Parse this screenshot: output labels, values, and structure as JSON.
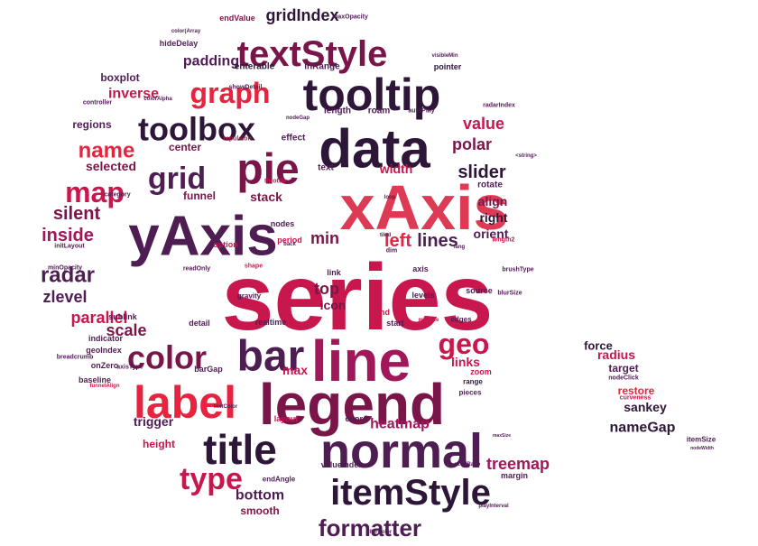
{
  "chart_data": {
    "type": "wordcloud",
    "title": "",
    "palette": [
      "#e6243f",
      "#c8174d",
      "#a0175a",
      "#7a1549",
      "#4e1d52",
      "#2d1638",
      "#dd3a55"
    ],
    "words": [
      {
        "text": "series",
        "size": 104,
        "weight": 100,
        "color": "#c8174d"
      },
      {
        "text": "xAxis",
        "size": 70,
        "weight": 75,
        "color": "#dd3a55"
      },
      {
        "text": "yAxis",
        "size": 62,
        "weight": 70,
        "color": "#4e1d52"
      },
      {
        "text": "legend",
        "size": 64,
        "weight": 70,
        "color": "#7a1549"
      },
      {
        "text": "line",
        "size": 64,
        "weight": 70,
        "color": "#a0175a"
      },
      {
        "text": "data",
        "size": 60,
        "weight": 65,
        "color": "#2d1638"
      },
      {
        "text": "tooltip",
        "size": 50,
        "weight": 60,
        "color": "#2d1638"
      },
      {
        "text": "normal",
        "size": 54,
        "weight": 60,
        "color": "#4e1d52"
      },
      {
        "text": "label",
        "size": 50,
        "weight": 55,
        "color": "#e6243f"
      },
      {
        "text": "bar",
        "size": 48,
        "weight": 55,
        "color": "#4e1d52"
      },
      {
        "text": "pie",
        "size": 48,
        "weight": 55,
        "color": "#7a1549"
      },
      {
        "text": "title",
        "size": 46,
        "weight": 52,
        "color": "#2d1638"
      },
      {
        "text": "textStyle",
        "size": 40,
        "weight": 50,
        "color": "#7a1549"
      },
      {
        "text": "itemStyle",
        "size": 40,
        "weight": 50,
        "color": "#2d1638"
      },
      {
        "text": "toolbox",
        "size": 36,
        "weight": 45,
        "color": "#2d1638"
      },
      {
        "text": "color",
        "size": 36,
        "weight": 45,
        "color": "#7a1549"
      },
      {
        "text": "grid",
        "size": 34,
        "weight": 44,
        "color": "#4e1d52"
      },
      {
        "text": "graph",
        "size": 32,
        "weight": 42,
        "color": "#e6243f"
      },
      {
        "text": "map",
        "size": 32,
        "weight": 42,
        "color": "#c8174d"
      },
      {
        "text": "type",
        "size": 34,
        "weight": 42,
        "color": "#c8174d"
      },
      {
        "text": "geo",
        "size": 32,
        "weight": 40,
        "color": "#c8174d"
      },
      {
        "text": "formatter",
        "size": 26,
        "weight": 35,
        "color": "#4e1d52"
      },
      {
        "text": "name",
        "size": 24,
        "weight": 32,
        "color": "#e6243f"
      },
      {
        "text": "radar",
        "size": 24,
        "weight": 32,
        "color": "#4e1d52"
      },
      {
        "text": "slider",
        "size": 20,
        "weight": 28,
        "color": "#2d1638"
      },
      {
        "text": "polar",
        "size": 18,
        "weight": 26,
        "color": "#7a1549"
      },
      {
        "text": "value",
        "size": 18,
        "weight": 26,
        "color": "#c8174d"
      },
      {
        "text": "silent",
        "size": 20,
        "weight": 26,
        "color": "#7a1549"
      },
      {
        "text": "inside",
        "size": 20,
        "weight": 26,
        "color": "#a0175a"
      },
      {
        "text": "left",
        "size": 20,
        "weight": 26,
        "color": "#e6243f"
      },
      {
        "text": "lines",
        "size": 20,
        "weight": 26,
        "color": "#4e1d52"
      },
      {
        "text": "min",
        "size": 18,
        "weight": 24,
        "color": "#7a1549"
      },
      {
        "text": "zlevel",
        "size": 18,
        "weight": 24,
        "color": "#4e1d52"
      },
      {
        "text": "parallel",
        "size": 18,
        "weight": 24,
        "color": "#c8174d"
      },
      {
        "text": "scale",
        "size": 18,
        "weight": 24,
        "color": "#7a1549"
      },
      {
        "text": "top",
        "size": 18,
        "weight": 24,
        "color": "#7a1549"
      },
      {
        "text": "treemap",
        "size": 18,
        "weight": 24,
        "color": "#a0175a"
      },
      {
        "text": "bottom",
        "size": 16,
        "weight": 22,
        "color": "#4e1d52"
      },
      {
        "text": "heatmap",
        "size": 16,
        "weight": 22,
        "color": "#a0175a"
      },
      {
        "text": "nameGap",
        "size": 16,
        "weight": 22,
        "color": "#2d1638"
      },
      {
        "text": "sankey",
        "size": 14,
        "weight": 20,
        "color": "#2d1638"
      },
      {
        "text": "gridIndex",
        "size": 18,
        "weight": 22,
        "color": "#2d1638"
      },
      {
        "text": "padding",
        "size": 16,
        "weight": 20,
        "color": "#4e1d52"
      },
      {
        "text": "inverse",
        "size": 16,
        "weight": 20,
        "color": "#c8174d"
      },
      {
        "text": "selected",
        "size": 14,
        "weight": 20,
        "color": "#7a1549"
      },
      {
        "text": "width",
        "size": 14,
        "weight": 20,
        "color": "#c8174d"
      },
      {
        "text": "stack",
        "size": 14,
        "weight": 20,
        "color": "#7a1549"
      },
      {
        "text": "orient",
        "size": 14,
        "weight": 20,
        "color": "#4e1d52"
      },
      {
        "text": "links",
        "size": 14,
        "weight": 20,
        "color": "#c8174d"
      },
      {
        "text": "trigger",
        "size": 14,
        "weight": 20,
        "color": "#4e1d52"
      },
      {
        "text": "smooth",
        "size": 12,
        "weight": 18,
        "color": "#7a1549"
      },
      {
        "text": "center",
        "size": 12,
        "weight": 18,
        "color": "#7a1549"
      },
      {
        "text": "icon",
        "size": 14,
        "weight": 18,
        "color": "#7a1549"
      },
      {
        "text": "max",
        "size": 14,
        "weight": 18,
        "color": "#c8174d"
      },
      {
        "text": "height",
        "size": 12,
        "weight": 18,
        "color": "#c8174d"
      },
      {
        "text": "right",
        "size": 14,
        "weight": 18,
        "color": "#2d1638"
      },
      {
        "text": "align",
        "size": 14,
        "weight": 18,
        "color": "#7a1549"
      },
      {
        "text": "funnel",
        "size": 12,
        "weight": 16,
        "color": "#7a1549"
      },
      {
        "text": "boxplot",
        "size": 12,
        "weight": 16,
        "color": "#4e1d52"
      },
      {
        "text": "regions",
        "size": 12,
        "weight": 16,
        "color": "#4e1d52"
      },
      {
        "text": "force",
        "size": 13,
        "weight": 16,
        "color": "#2d1638"
      },
      {
        "text": "radius",
        "size": 14,
        "weight": 16,
        "color": "#c8174d"
      },
      {
        "text": "target",
        "size": 12,
        "weight": 15,
        "color": "#4e1d52"
      },
      {
        "text": "restore",
        "size": 12,
        "weight": 15,
        "color": "#e6243f"
      },
      {
        "text": "enterable",
        "size": 10,
        "weight": 14,
        "color": "#2d1638"
      },
      {
        "text": "inRange",
        "size": 10,
        "weight": 14,
        "color": "#4e1d52"
      },
      {
        "text": "endValue",
        "size": 9,
        "weight": 12,
        "color": "#7a1549"
      },
      {
        "text": "hideDelay",
        "size": 9,
        "weight": 12,
        "color": "#4e1d52"
      },
      {
        "text": "pointer",
        "size": 9,
        "weight": 12,
        "color": "#2d1638"
      },
      {
        "text": "length",
        "size": 10,
        "weight": 12,
        "color": "#4e1d52"
      },
      {
        "text": "roam",
        "size": 10,
        "weight": 12,
        "color": "#4e1d52"
      },
      {
        "text": "effect",
        "size": 10,
        "weight": 12,
        "color": "#4e1d52"
      },
      {
        "text": "text",
        "size": 10,
        "weight": 12,
        "color": "#4e1d52"
      },
      {
        "text": "rotate",
        "size": 10,
        "weight": 12,
        "color": "#4e1d52"
      },
      {
        "text": "nodes",
        "size": 9,
        "weight": 11,
        "color": "#4e1d52"
      },
      {
        "text": "option",
        "size": 9,
        "weight": 11,
        "color": "#c8174d"
      },
      {
        "text": "period",
        "size": 9,
        "weight": 11,
        "color": "#c8174d"
      },
      {
        "text": "axis",
        "size": 9,
        "weight": 11,
        "color": "#4e1d52"
      },
      {
        "text": "source",
        "size": 9,
        "weight": 11,
        "color": "#4e1d52"
      },
      {
        "text": "levels",
        "size": 9,
        "weight": 11,
        "color": "#4e1d52"
      },
      {
        "text": "end",
        "size": 9,
        "weight": 11,
        "color": "#c8174d"
      },
      {
        "text": "start",
        "size": 9,
        "weight": 11,
        "color": "#4e1d52"
      },
      {
        "text": "edges",
        "size": 8,
        "weight": 10,
        "color": "#4e1d52"
      },
      {
        "text": "zoom",
        "size": 9,
        "weight": 11,
        "color": "#c8174d"
      },
      {
        "text": "range",
        "size": 8,
        "weight": 10,
        "color": "#2d1638"
      },
      {
        "text": "pieces",
        "size": 8,
        "weight": 10,
        "color": "#4e1d52"
      },
      {
        "text": "coord",
        "size": 9,
        "weight": 11,
        "color": "#4e1d52"
      },
      {
        "text": "layout",
        "size": 9,
        "weight": 11,
        "color": "#c8174d"
      },
      {
        "text": "detail",
        "size": 9,
        "weight": 11,
        "color": "#4e1d52"
      },
      {
        "text": "realtime",
        "size": 9,
        "weight": 11,
        "color": "#4e1d52"
      },
      {
        "text": "gravity",
        "size": 8,
        "weight": 10,
        "color": "#4e1d52"
      },
      {
        "text": "link",
        "size": 9,
        "weight": 11,
        "color": "#4e1d52"
      },
      {
        "text": "sublink",
        "size": 9,
        "weight": 11,
        "color": "#4e1d52"
      },
      {
        "text": "indicator",
        "size": 9,
        "weight": 11,
        "color": "#4e1d52"
      },
      {
        "text": "geoIndex",
        "size": 9,
        "weight": 11,
        "color": "#4e1d52"
      },
      {
        "text": "onZero",
        "size": 9,
        "weight": 11,
        "color": "#4e1d52"
      },
      {
        "text": "baseline",
        "size": 9,
        "weight": 11,
        "color": "#4e1d52"
      },
      {
        "text": "barGap",
        "size": 9,
        "weight": 11,
        "color": "#4e1d52"
      },
      {
        "text": "valueIndex",
        "size": 9,
        "weight": 11,
        "color": "#4e1d52"
      },
      {
        "text": "endAngle",
        "size": 8,
        "weight": 10,
        "color": "#4e1d52"
      },
      {
        "text": "margin",
        "size": 9,
        "weight": 11,
        "color": "#4e1d52"
      },
      {
        "text": "itemSize",
        "size": 8,
        "weight": 10,
        "color": "#4e1d52"
      },
      {
        "text": "nodeClick",
        "size": 7,
        "weight": 9,
        "color": "#4e1d52"
      },
      {
        "text": "curveness",
        "size": 7,
        "weight": 9,
        "color": "#c8174d"
      },
      {
        "text": "controller",
        "size": 7,
        "weight": 9,
        "color": "#4e1d52"
      },
      {
        "text": "colorAlpha",
        "size": 6,
        "weight": 8,
        "color": "#4e1d52"
      },
      {
        "text": "category",
        "size": 7,
        "weight": 9,
        "color": "#4e1d52"
      },
      {
        "text": "initLayout",
        "size": 7,
        "weight": 9,
        "color": "#4e1d52"
      },
      {
        "text": "minOpacity",
        "size": 7,
        "weight": 9,
        "color": "#4e1d52"
      },
      {
        "text": "readOnly",
        "size": 7,
        "weight": 9,
        "color": "#4e1d52"
      },
      {
        "text": "shape",
        "size": 7,
        "weight": 9,
        "color": "#c8174d"
      },
      {
        "text": "breadcrumb",
        "size": 7,
        "weight": 9,
        "color": "#4e1d52"
      },
      {
        "text": "axisType",
        "size": 7,
        "weight": 9,
        "color": "#4e1d52"
      },
      {
        "text": "funnelAlign",
        "size": 6,
        "weight": 8,
        "color": "#c8174d"
      },
      {
        "text": "textColor",
        "size": 6,
        "weight": 8,
        "color": "#4e1d52"
      },
      {
        "text": "showDetail",
        "size": 7,
        "weight": 9,
        "color": "#4e1d52"
      },
      {
        "text": "repulsion",
        "size": 7,
        "weight": 9,
        "color": "#c8174d"
      },
      {
        "text": "throttle",
        "size": 7,
        "weight": 9,
        "color": "#c8174d"
      },
      {
        "text": "maxOpacity",
        "size": 7,
        "weight": 9,
        "color": "#4e1d52"
      },
      {
        "text": "color(Array",
        "size": 6,
        "weight": 8,
        "color": "#4e1d52"
      },
      {
        "text": "visibleMin",
        "size": 6,
        "weight": 8,
        "color": "#4e1d52"
      },
      {
        "text": "autoPlay",
        "size": 7,
        "weight": 9,
        "color": "#4e1d52"
      },
      {
        "text": "radarIndex",
        "size": 7,
        "weight": 9,
        "color": "#4e1d52"
      },
      {
        "text": "loop",
        "size": 6,
        "weight": 8,
        "color": "#4e1d52"
      },
      {
        "text": "dim",
        "size": 7,
        "weight": 9,
        "color": "#4e1d52"
      },
      {
        "text": "lang",
        "size": 6,
        "weight": 8,
        "color": "#4e1d52"
      },
      {
        "text": "length2",
        "size": 7,
        "weight": 9,
        "color": "#c8174d"
      },
      {
        "text": "brushType",
        "size": 7,
        "weight": 9,
        "color": "#4e1d52"
      },
      {
        "text": "blurSize",
        "size": 7,
        "weight": 9,
        "color": "#4e1d52"
      },
      {
        "text": "minSize",
        "size": 6,
        "weight": 8,
        "color": "#c8174d"
      },
      {
        "text": "fillerColor",
        "size": 6,
        "weight": 8,
        "color": "#4e1d52"
      },
      {
        "text": "playInterval",
        "size": 6,
        "weight": 8,
        "color": "#4e1d52"
      },
      {
        "text": "pixelRatio",
        "size": 6,
        "weight": 8,
        "color": "#4e1d52"
      },
      {
        "text": "maxSize",
        "size": 5,
        "weight": 7,
        "color": "#4e1d52"
      },
      {
        "text": "nodeWidth",
        "size": 5,
        "weight": 7,
        "color": "#4e1d52"
      },
      {
        "text": "back",
        "size": 6,
        "weight": 8,
        "color": "#4e1d52"
      },
      {
        "text": "nodeGap",
        "size": 6,
        "weight": 8,
        "color": "#4e1d52"
      },
      {
        "text": "tiled",
        "size": 6,
        "weight": 8,
        "color": "#4e1d52"
      },
      {
        "text": "<string>",
        "size": 6,
        "weight": 8,
        "color": "#4e1d52"
      }
    ]
  }
}
